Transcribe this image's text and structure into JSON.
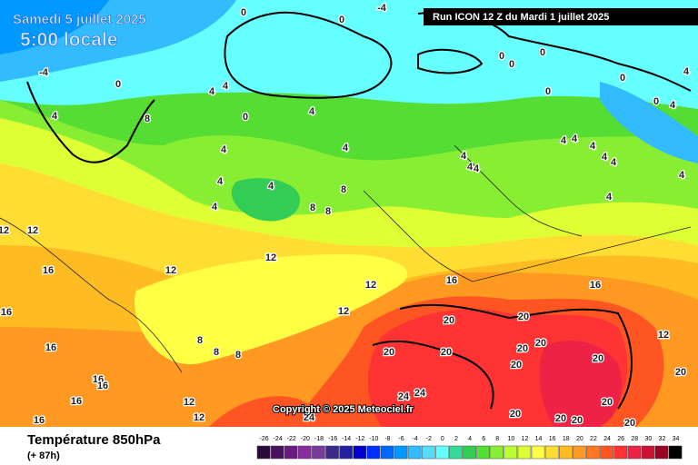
{
  "header": {
    "date": "Samedi 5 juillet 2025",
    "time": "5:00 locale",
    "run": "Run ICON 12 Z du Mardi 1 juillet 2025"
  },
  "footer": {
    "title": "Température 850hPa",
    "subtitle": "(+ 87h)",
    "copyright": "Copyright © 2025 Meteociel.fr"
  },
  "legend": {
    "labels": [
      -26,
      -24,
      -22,
      -20,
      -18,
      -16,
      -14,
      -12,
      -10,
      -8,
      -6,
      -4,
      -2,
      0,
      2,
      4,
      6,
      8,
      10,
      12,
      14,
      16,
      18,
      20,
      22,
      24,
      26,
      28,
      30,
      32,
      34
    ],
    "colors": [
      "#2a0a3a",
      "#4a1060",
      "#6a1a80",
      "#8a2aa0",
      "#7a3a9a",
      "#3a2a8a",
      "#2020a0",
      "#0000cc",
      "#0030ff",
      "#0066ff",
      "#0099ff",
      "#33bbff",
      "#55ddff",
      "#66ffff",
      "#33dd99",
      "#33cc55",
      "#55dd33",
      "#88ee33",
      "#bbff33",
      "#ddff33",
      "#ffff44",
      "#ffdd33",
      "#ffbb22",
      "#ff9922",
      "#ff7722",
      "#ff5522",
      "#ff3333",
      "#ee2244",
      "#cc1133",
      "#990022",
      "#000000"
    ]
  },
  "map": {
    "contour_labels": [
      "0",
      "-4",
      "0",
      "0",
      "0",
      "0",
      "0",
      "0",
      "0",
      "4",
      "4",
      "-4",
      "0",
      "4",
      "8",
      "4",
      "4",
      "0",
      "4",
      "4",
      "4",
      "4",
      "4",
      "4",
      "8",
      "8",
      "8",
      "4",
      "4",
      "4",
      "4",
      "4",
      "4",
      "4",
      "4",
      "4",
      "4",
      "12",
      "12",
      "12",
      "12",
      "16",
      "16",
      "16",
      "16",
      "12",
      "12",
      "16",
      "8",
      "8",
      "8",
      "12",
      "20",
      "20",
      "20",
      "20",
      "20",
      "20",
      "20",
      "20",
      "16",
      "16",
      "16",
      "16",
      "12",
      "12",
      "24",
      "24",
      "24",
      "20",
      "20",
      "20",
      "20",
      "20",
      "20"
    ]
  }
}
